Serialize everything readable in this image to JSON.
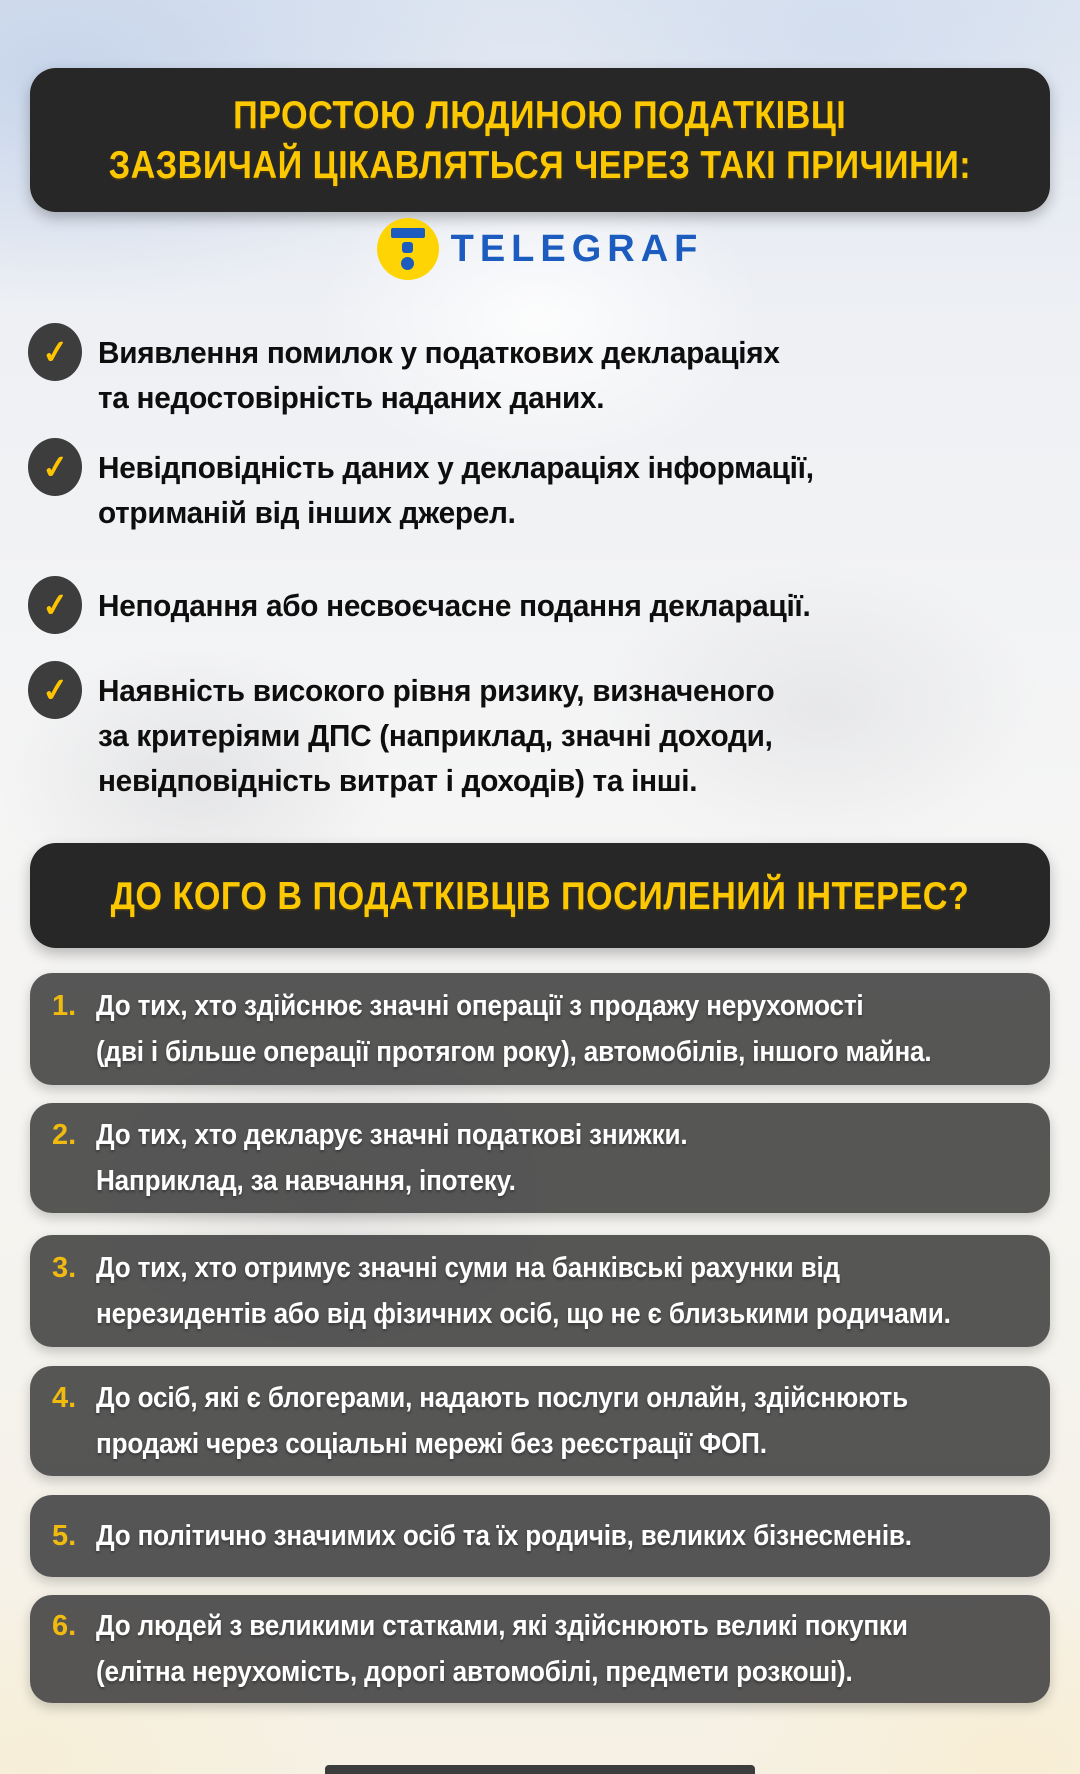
{
  "header1": {
    "line1": "ПРОСТОЮ ЛЮДИНОЮ ПОДАТКІВЦІ",
    "line2": "ЗАЗВИЧАЙ ЦІКАВЛЯТЬСЯ ЧЕРЕЗ ТАКІ ПРИЧИНИ:"
  },
  "logo": {
    "text": "TELEGRAF"
  },
  "icons": {
    "check": "✓"
  },
  "reasons": [
    {
      "text": "Виявлення помилок у податкових деклараціях\nта недостовірність наданих даних."
    },
    {
      "text": "Невідповідність даних у деклараціях інформації,\nотриманій від інших джерел."
    },
    {
      "text": "Неподання або несвоєчасне подання декларації."
    },
    {
      "text": "Наявність високого рівня ризику, визначеного\nза критеріями ДПС (наприклад, значні доходи,\nневідповідність витрат і доходів) та інші."
    }
  ],
  "header2": {
    "text": "ДО КОГО В ПОДАТКІВЦІВ ПОСИЛЕНИЙ ІНТЕРЕС?"
  },
  "interest": [
    {
      "number": "1.",
      "text": "До тих, хто здійснює значні операції з продажу нерухомості\n(дві і більше операції протягом року), автомобілів, іншого майна."
    },
    {
      "number": "2.",
      "text": "До тих, хто декларує значні податкові знижки.\nНаприклад, за навчання, іпотеку."
    },
    {
      "number": "3.",
      "text": "До тих, хто отримує значні суми на банківські рахунки від\nнерезидентів або від фізичних осіб, що не є близькими родичами."
    },
    {
      "number": "4.",
      "text": "До осіб, які є блогерами, надають послуги онлайн, здійснюють\nпродажі через соціальні мережі без реєстрації ФОП."
    },
    {
      "number": "5.",
      "text": "До політично значимих осіб та їх родичів, великих бізнесменів."
    },
    {
      "number": "6.",
      "text": "До людей з великими статками, які здійснюють великі покупки\n(елітна нерухомість, дорогі автомобілі, предмети розкоші)."
    }
  ],
  "colors": {
    "accent_yellow": "#fcc801",
    "check_yellow": "#ffc400",
    "number_yellow": "#f0bb0e",
    "dark_panel": "#272727",
    "card_gray": "#494949",
    "logo_blue": "#1d5cbf",
    "logo_circle_yellow": "#ffd404"
  }
}
